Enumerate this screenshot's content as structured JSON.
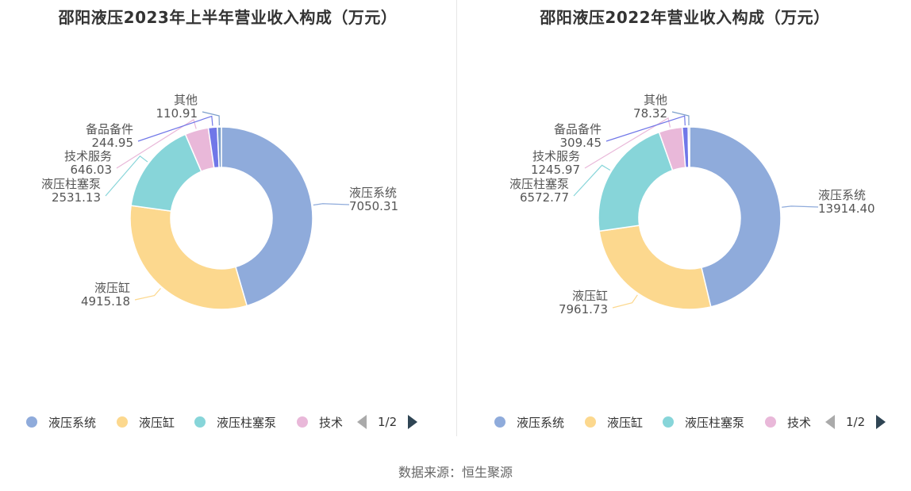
{
  "colors": [
    "#8fabdb",
    "#fcd88e",
    "#87d5d9",
    "#e9b8d9",
    "#7077e8",
    "#7c9fcb"
  ],
  "chart_data": [
    {
      "type": "pie",
      "title": "邵阳液压2023年上半年营业收入构成（万元）",
      "slices": [
        {
          "name": "液压系统",
          "value": 7050.31,
          "label": "7050.31"
        },
        {
          "name": "液压缸",
          "value": 4915.18,
          "label": "4915.18"
        },
        {
          "name": "液压柱塞泵",
          "value": 2531.13,
          "label": "2531.13"
        },
        {
          "name": "技术服务",
          "value": 646.03,
          "label": "646.03"
        },
        {
          "name": "备品备件",
          "value": 244.95,
          "label": "244.95"
        },
        {
          "name": "其他",
          "value": 110.91,
          "label": "110.91"
        }
      ],
      "legend": {
        "items": [
          "液压系统",
          "液压缸",
          "液压柱塞泵",
          "技术"
        ],
        "placement": "bottom",
        "page": "1/2"
      }
    },
    {
      "type": "pie",
      "title": "邵阳液压2022年营业收入构成（万元）",
      "slices": [
        {
          "name": "液压系统",
          "value": 13914.4,
          "label": "13914.40"
        },
        {
          "name": "液压缸",
          "value": 7961.73,
          "label": "7961.73"
        },
        {
          "name": "液压柱塞泵",
          "value": 6572.77,
          "label": "6572.77"
        },
        {
          "name": "技术服务",
          "value": 1245.97,
          "label": "1245.97"
        },
        {
          "name": "备品备件",
          "value": 309.45,
          "label": "309.45"
        },
        {
          "name": "其他",
          "value": 78.32,
          "label": "78.32"
        }
      ],
      "legend": {
        "items": [
          "液压系统",
          "液压缸",
          "液压柱塞泵",
          "技术"
        ],
        "placement": "bottom",
        "page": "1/2"
      }
    }
  ],
  "source": "数据来源：恒生聚源"
}
